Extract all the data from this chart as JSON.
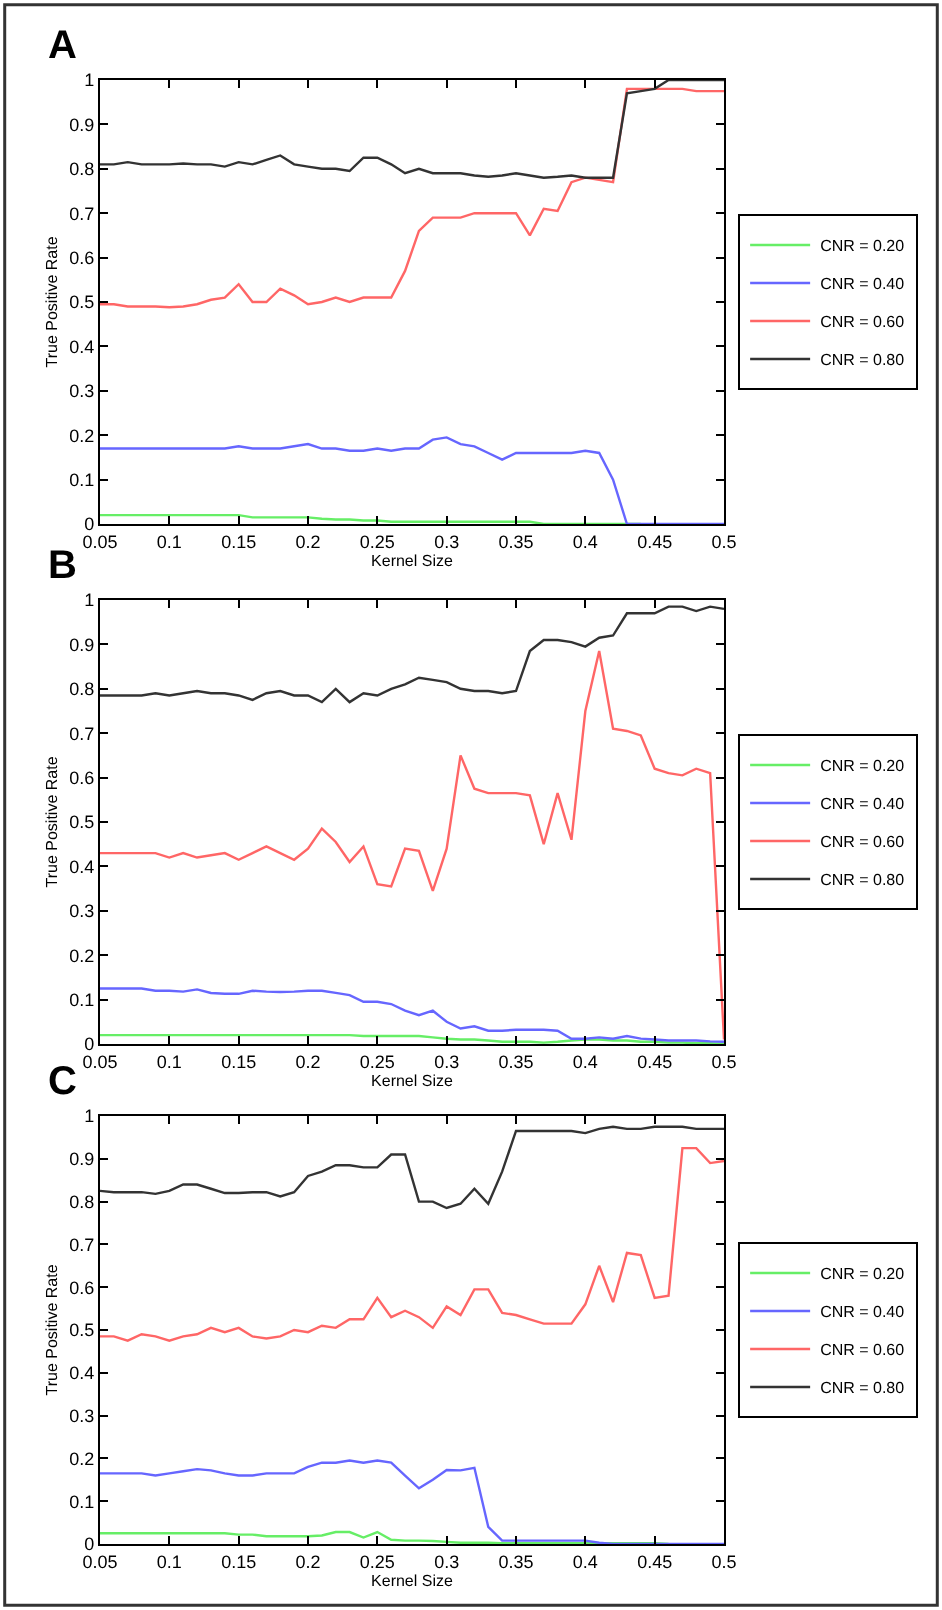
{
  "chart_data": [
    {
      "type": "line",
      "title": "A",
      "xlabel": "Kernel Size",
      "ylabel": "True Positive Rate",
      "xlim": [
        0.05,
        0.5
      ],
      "ylim": [
        0,
        1
      ],
      "xticks": [
        0.05,
        0.1,
        0.15,
        0.2,
        0.25,
        0.3,
        0.35,
        0.4,
        0.45,
        0.5
      ],
      "yticks": [
        0,
        0.1,
        0.2,
        0.3,
        0.4,
        0.5,
        0.6,
        0.7,
        0.8,
        0.9,
        1
      ],
      "grid": false,
      "legend": "right",
      "marker": "none",
      "line_style": "solid",
      "x": [
        0.05,
        0.06,
        0.07,
        0.08,
        0.09,
        0.1,
        0.11,
        0.12,
        0.13,
        0.14,
        0.15,
        0.16,
        0.17,
        0.18,
        0.19,
        0.2,
        0.21,
        0.22,
        0.23,
        0.24,
        0.25,
        0.26,
        0.27,
        0.28,
        0.29,
        0.3,
        0.31,
        0.32,
        0.33,
        0.34,
        0.35,
        0.36,
        0.37,
        0.38,
        0.39,
        0.4,
        0.41,
        0.42,
        0.43,
        0.44,
        0.45,
        0.46,
        0.47,
        0.48,
        0.49,
        0.5
      ],
      "series": [
        {
          "name": "CNR = 0.20",
          "color": "#66ee66",
          "values": [
            0.02,
            0.02,
            0.02,
            0.02,
            0.02,
            0.02,
            0.02,
            0.02,
            0.02,
            0.02,
            0.02,
            0.015,
            0.015,
            0.015,
            0.015,
            0.015,
            0.012,
            0.01,
            0.01,
            0.008,
            0.008,
            0.005,
            0.005,
            0.005,
            0.005,
            0.005,
            0.005,
            0.005,
            0.005,
            0.005,
            0.005,
            0.005,
            0,
            0,
            0,
            0,
            0,
            0,
            0,
            0,
            null,
            null,
            null,
            null,
            null,
            null
          ]
        },
        {
          "name": "CNR = 0.40",
          "color": "#6666ff",
          "values": [
            0.17,
            0.17,
            0.17,
            0.17,
            0.17,
            0.17,
            0.17,
            0.17,
            0.17,
            0.17,
            0.175,
            0.17,
            0.17,
            0.17,
            0.175,
            0.18,
            0.17,
            0.17,
            0.165,
            0.165,
            0.17,
            0.165,
            0.17,
            0.17,
            0.19,
            0.195,
            0.18,
            0.175,
            0.16,
            0.145,
            0.16,
            0.16,
            0.16,
            0.16,
            0.16,
            0.165,
            0.16,
            0.1,
            0,
            0,
            0,
            0,
            0,
            0,
            0,
            0
          ]
        },
        {
          "name": "CNR = 0.60",
          "color": "#ff6666",
          "values": [
            0.495,
            0.495,
            0.49,
            0.49,
            0.49,
            0.488,
            0.49,
            0.495,
            0.505,
            0.51,
            0.54,
            0.5,
            0.5,
            0.53,
            0.515,
            0.495,
            0.5,
            0.51,
            0.5,
            0.51,
            0.51,
            0.51,
            0.57,
            0.66,
            0.69,
            0.69,
            0.69,
            0.7,
            0.7,
            0.7,
            0.7,
            0.65,
            0.71,
            0.705,
            0.77,
            0.78,
            0.775,
            0.77,
            0.98,
            0.98,
            0.98,
            0.98,
            0.98,
            0.975,
            0.975,
            0.975
          ]
        },
        {
          "name": "CNR = 0.80",
          "color": "#333333",
          "values": [
            0.81,
            0.81,
            0.815,
            0.81,
            0.81,
            0.81,
            0.812,
            0.81,
            0.81,
            0.805,
            0.815,
            0.81,
            0.82,
            0.83,
            0.81,
            0.805,
            0.8,
            0.8,
            0.795,
            0.825,
            0.825,
            0.81,
            0.79,
            0.8,
            0.79,
            0.79,
            0.79,
            0.785,
            0.782,
            0.785,
            0.79,
            0.785,
            0.78,
            0.782,
            0.785,
            0.78,
            0.78,
            0.78,
            0.97,
            0.975,
            0.98,
            1,
            1,
            1,
            1,
            1
          ]
        }
      ]
    },
    {
      "type": "line",
      "title": "B",
      "xlabel": "Kernel Size",
      "ylabel": "True Positive Rate",
      "xlim": [
        0.05,
        0.5
      ],
      "ylim": [
        0,
        1
      ],
      "xticks": [
        0.05,
        0.1,
        0.15,
        0.2,
        0.25,
        0.3,
        0.35,
        0.4,
        0.45,
        0.5
      ],
      "yticks": [
        0,
        0.1,
        0.2,
        0.3,
        0.4,
        0.5,
        0.6,
        0.7,
        0.8,
        0.9,
        1
      ],
      "grid": false,
      "legend": "right",
      "marker": "none",
      "line_style": "solid",
      "x": [
        0.05,
        0.06,
        0.07,
        0.08,
        0.09,
        0.1,
        0.11,
        0.12,
        0.13,
        0.14,
        0.15,
        0.16,
        0.17,
        0.18,
        0.19,
        0.2,
        0.21,
        0.22,
        0.23,
        0.24,
        0.25,
        0.26,
        0.27,
        0.28,
        0.29,
        0.3,
        0.31,
        0.32,
        0.33,
        0.34,
        0.35,
        0.36,
        0.37,
        0.38,
        0.39,
        0.4,
        0.41,
        0.42,
        0.43,
        0.44,
        0.45,
        0.46,
        0.47,
        0.48,
        0.49,
        0.5
      ],
      "series": [
        {
          "name": "CNR = 0.20",
          "color": "#66ee66",
          "values": [
            0.02,
            0.02,
            0.02,
            0.02,
            0.02,
            0.02,
            0.02,
            0.02,
            0.02,
            0.02,
            0.02,
            0.02,
            0.02,
            0.02,
            0.02,
            0.02,
            0.02,
            0.02,
            0.02,
            0.018,
            0.018,
            0.018,
            0.018,
            0.018,
            0.015,
            0.012,
            0.01,
            0.01,
            0.008,
            0.005,
            0.005,
            0.005,
            0.003,
            0.005,
            0.008,
            0.01,
            0.01,
            0.008,
            0.008,
            0.005,
            0.005,
            0.003,
            0.003,
            0.002,
            0.002,
            0
          ]
        },
        {
          "name": "CNR = 0.40",
          "color": "#6666ff",
          "values": [
            0.125,
            0.125,
            0.125,
            0.125,
            0.12,
            0.12,
            0.118,
            0.123,
            0.115,
            0.113,
            0.113,
            0.12,
            0.118,
            0.117,
            0.118,
            0.12,
            0.12,
            0.115,
            0.11,
            0.095,
            0.095,
            0.09,
            0.075,
            0.065,
            0.075,
            0.05,
            0.035,
            0.04,
            0.03,
            0.03,
            0.032,
            0.032,
            0.032,
            0.03,
            0.012,
            0.012,
            0.015,
            0.012,
            0.018,
            0.012,
            0.01,
            0.008,
            0.008,
            0.008,
            0.006,
            0.005
          ]
        },
        {
          "name": "CNR = 0.60",
          "color": "#ff6666",
          "values": [
            0.43,
            0.43,
            0.43,
            0.43,
            0.43,
            0.42,
            0.43,
            0.42,
            0.425,
            0.43,
            0.415,
            0.43,
            0.445,
            0.43,
            0.415,
            0.44,
            0.485,
            0.455,
            0.41,
            0.445,
            0.36,
            0.355,
            0.44,
            0.435,
            0.345,
            0.44,
            0.65,
            0.575,
            0.565,
            0.565,
            0.565,
            0.56,
            0.45,
            0.565,
            0.46,
            0.75,
            0.885,
            0.71,
            0.705,
            0.695,
            0.62,
            0.61,
            0.605,
            0.62,
            0.61,
            0.01
          ]
        },
        {
          "name": "CNR = 0.80",
          "color": "#333333",
          "values": [
            0.785,
            0.785,
            0.785,
            0.785,
            0.79,
            0.785,
            0.79,
            0.795,
            0.79,
            0.79,
            0.785,
            0.775,
            0.79,
            0.795,
            0.785,
            0.785,
            0.77,
            0.8,
            0.77,
            0.79,
            0.785,
            0.8,
            0.81,
            0.825,
            0.82,
            0.815,
            0.8,
            0.795,
            0.795,
            0.79,
            0.795,
            0.885,
            0.91,
            0.91,
            0.905,
            0.895,
            0.915,
            0.92,
            0.97,
            0.97,
            0.97,
            0.985,
            0.985,
            0.975,
            0.985,
            0.98
          ]
        }
      ]
    },
    {
      "type": "line",
      "title": "C",
      "xlabel": "Kernel Size",
      "ylabel": "True Positive Rate",
      "xlim": [
        0.05,
        0.5
      ],
      "ylim": [
        0,
        1
      ],
      "xticks": [
        0.05,
        0.1,
        0.15,
        0.2,
        0.25,
        0.3,
        0.35,
        0.4,
        0.45,
        0.5
      ],
      "yticks": [
        0,
        0.1,
        0.2,
        0.3,
        0.4,
        0.5,
        0.6,
        0.7,
        0.8,
        0.9,
        1
      ],
      "grid": false,
      "legend": "right",
      "marker": "none",
      "line_style": "solid",
      "x": [
        0.05,
        0.06,
        0.07,
        0.08,
        0.09,
        0.1,
        0.11,
        0.12,
        0.13,
        0.14,
        0.15,
        0.16,
        0.17,
        0.18,
        0.19,
        0.2,
        0.21,
        0.22,
        0.23,
        0.24,
        0.25,
        0.26,
        0.27,
        0.28,
        0.29,
        0.3,
        0.31,
        0.32,
        0.33,
        0.34,
        0.35,
        0.36,
        0.37,
        0.38,
        0.39,
        0.4,
        0.41,
        0.42,
        0.43,
        0.44,
        0.45,
        0.46,
        0.47,
        0.48,
        0.49,
        0.5
      ],
      "series": [
        {
          "name": "CNR = 0.20",
          "color": "#66ee66",
          "values": [
            0.025,
            0.025,
            0.025,
            0.025,
            0.025,
            0.025,
            0.025,
            0.025,
            0.025,
            0.025,
            0.022,
            0.022,
            0.018,
            0.018,
            0.018,
            0.018,
            0.02,
            0.028,
            0.028,
            0.015,
            0.028,
            0.01,
            0.008,
            0.008,
            0.007,
            0.005,
            0.003,
            0.003,
            0.003,
            0.002,
            0.002,
            0.002,
            0.002,
            0.002,
            0.002,
            0.002,
            0.002,
            0.002,
            0.002,
            0.002,
            0.002,
            0,
            null,
            null,
            null,
            null
          ]
        },
        {
          "name": "CNR = 0.40",
          "color": "#6666ff",
          "values": [
            0.165,
            0.165,
            0.165,
            0.165,
            0.16,
            0.165,
            0.17,
            0.175,
            0.172,
            0.165,
            0.16,
            0.16,
            0.165,
            0.165,
            0.165,
            0.18,
            0.19,
            0.19,
            0.195,
            0.19,
            0.195,
            0.19,
            0.16,
            0.13,
            0.15,
            0.173,
            0.172,
            0.178,
            0.04,
            0.008,
            0.008,
            0.008,
            0.008,
            0.008,
            0.008,
            0.008,
            0.003,
            0,
            0,
            0,
            0,
            0,
            0,
            0,
            0,
            0
          ]
        },
        {
          "name": "CNR = 0.60",
          "color": "#ff6666",
          "values": [
            0.485,
            0.485,
            0.475,
            0.49,
            0.485,
            0.475,
            0.485,
            0.49,
            0.505,
            0.495,
            0.505,
            0.485,
            0.48,
            0.485,
            0.5,
            0.495,
            0.51,
            0.505,
            0.525,
            0.525,
            0.575,
            0.53,
            0.545,
            0.53,
            0.505,
            0.555,
            0.535,
            0.595,
            0.595,
            0.54,
            0.535,
            0.525,
            0.515,
            0.515,
            0.515,
            0.56,
            0.65,
            0.565,
            0.68,
            0.675,
            0.575,
            0.58,
            0.925,
            0.925,
            0.89,
            0.895
          ]
        },
        {
          "name": "CNR = 0.80",
          "color": "#333333",
          "values": [
            0.825,
            0.822,
            0.822,
            0.822,
            0.818,
            0.825,
            0.84,
            0.84,
            0.83,
            0.82,
            0.82,
            0.822,
            0.822,
            0.812,
            0.822,
            0.86,
            0.87,
            0.885,
            0.885,
            0.88,
            0.88,
            0.91,
            0.91,
            0.8,
            0.8,
            0.785,
            0.795,
            0.83,
            0.795,
            0.87,
            0.965,
            0.965,
            0.965,
            0.965,
            0.965,
            0.96,
            0.97,
            0.975,
            0.97,
            0.97,
            0.975,
            0.975,
            0.975,
            0.97,
            0.97,
            0.97
          ]
        }
      ]
    }
  ]
}
